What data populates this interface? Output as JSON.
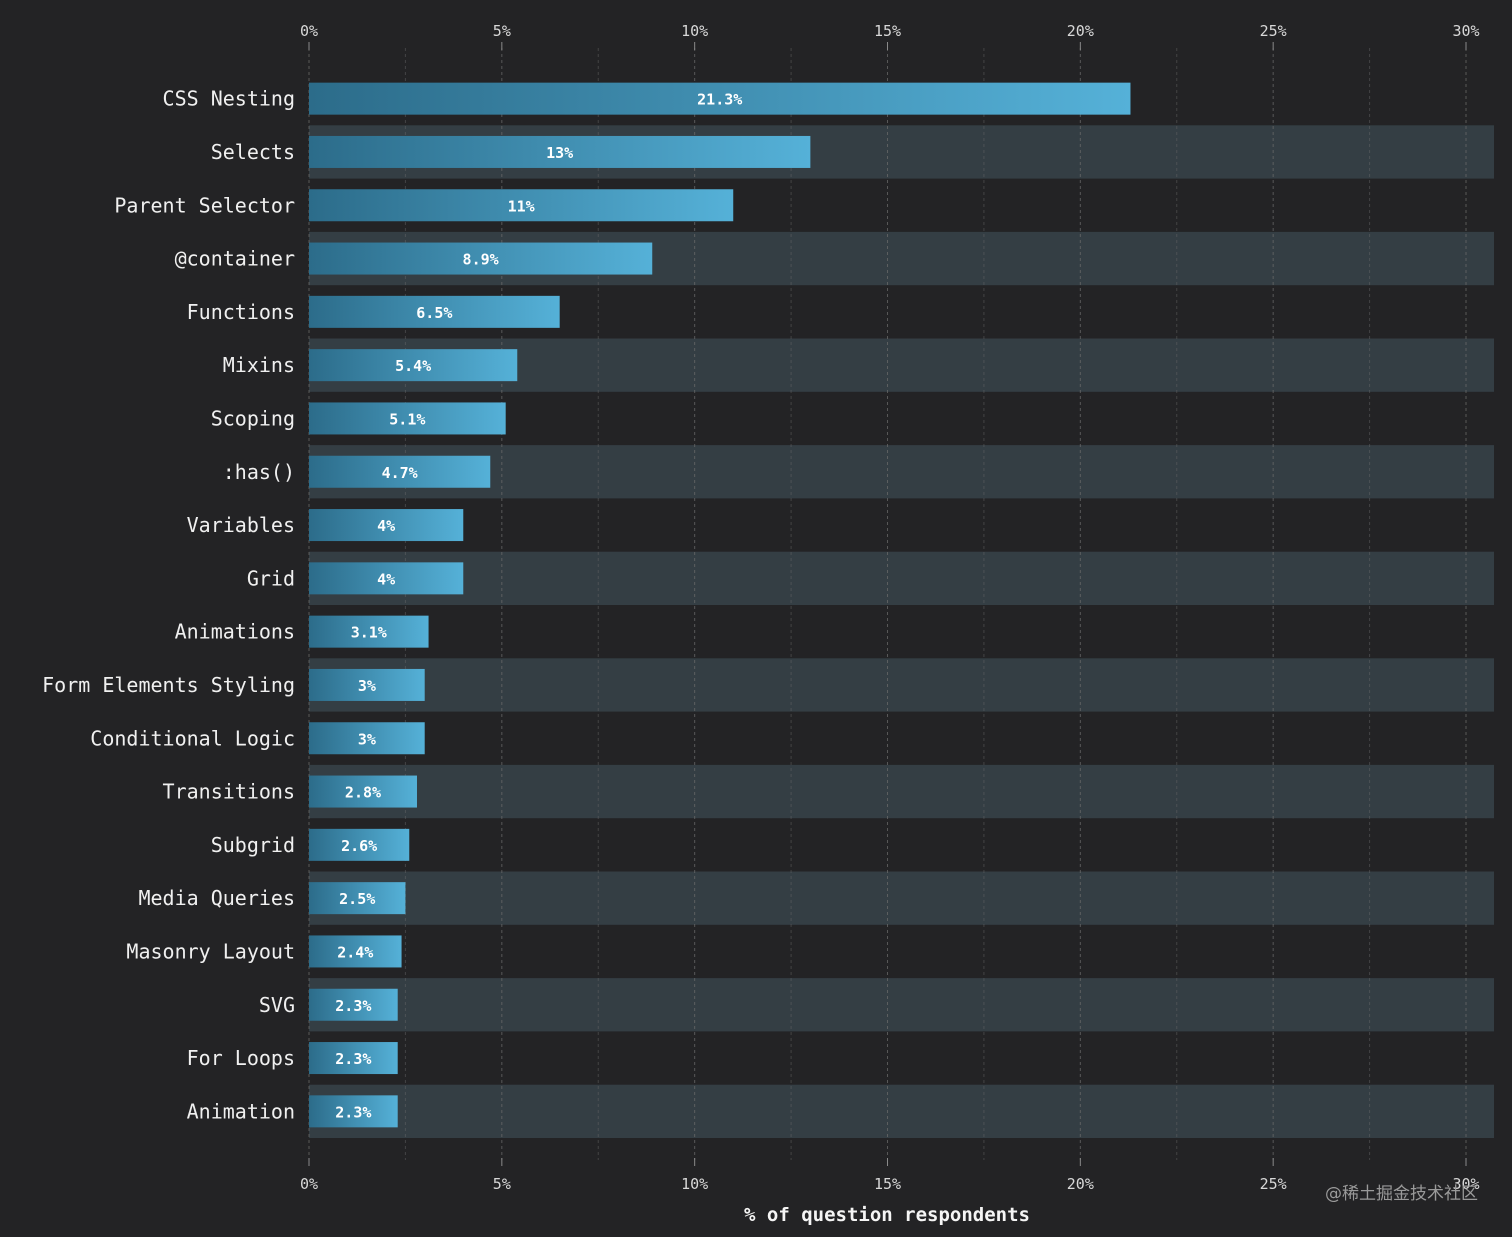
{
  "chart_data": {
    "type": "bar",
    "orientation": "horizontal",
    "categories": [
      "CSS Nesting",
      "Selects",
      "Parent Selector",
      "@container",
      "Functions",
      "Mixins",
      "Scoping",
      ":has()",
      "Variables",
      "Grid",
      "Animations",
      "Form Elements Styling",
      "Conditional Logic",
      "Transitions",
      "Subgrid",
      "Media Queries",
      "Masonry Layout",
      "SVG",
      "For Loops",
      "Animation"
    ],
    "values": [
      21.3,
      13,
      11,
      8.9,
      6.5,
      5.4,
      5.1,
      4.7,
      4,
      4,
      3.1,
      3,
      3,
      2.8,
      2.6,
      2.5,
      2.4,
      2.3,
      2.3,
      2.3
    ],
    "value_labels": [
      "21.3%",
      "13%",
      "11%",
      "8.9%",
      "6.5%",
      "5.4%",
      "5.1%",
      "4.7%",
      "4%",
      "4%",
      "3.1%",
      "3%",
      "3%",
      "2.8%",
      "2.6%",
      "2.5%",
      "2.4%",
      "2.3%",
      "2.3%",
      "2.3%"
    ],
    "xlim": [
      0,
      30
    ],
    "xticks": [
      0,
      5,
      10,
      15,
      20,
      25,
      30
    ],
    "xtick_labels": [
      "0%",
      "5%",
      "10%",
      "15%",
      "20%",
      "25%",
      "30%"
    ],
    "xlabel": "% of question respondents",
    "ylabel": "",
    "title": "",
    "grid": true
  },
  "watermark": "@稀土掘金技术社区",
  "colors": {
    "background": "#232325",
    "row_band": "#343e44",
    "bar_start": "#2c6c8a",
    "bar_end": "#55b1d8",
    "grid_line": "#6a6a6a"
  }
}
